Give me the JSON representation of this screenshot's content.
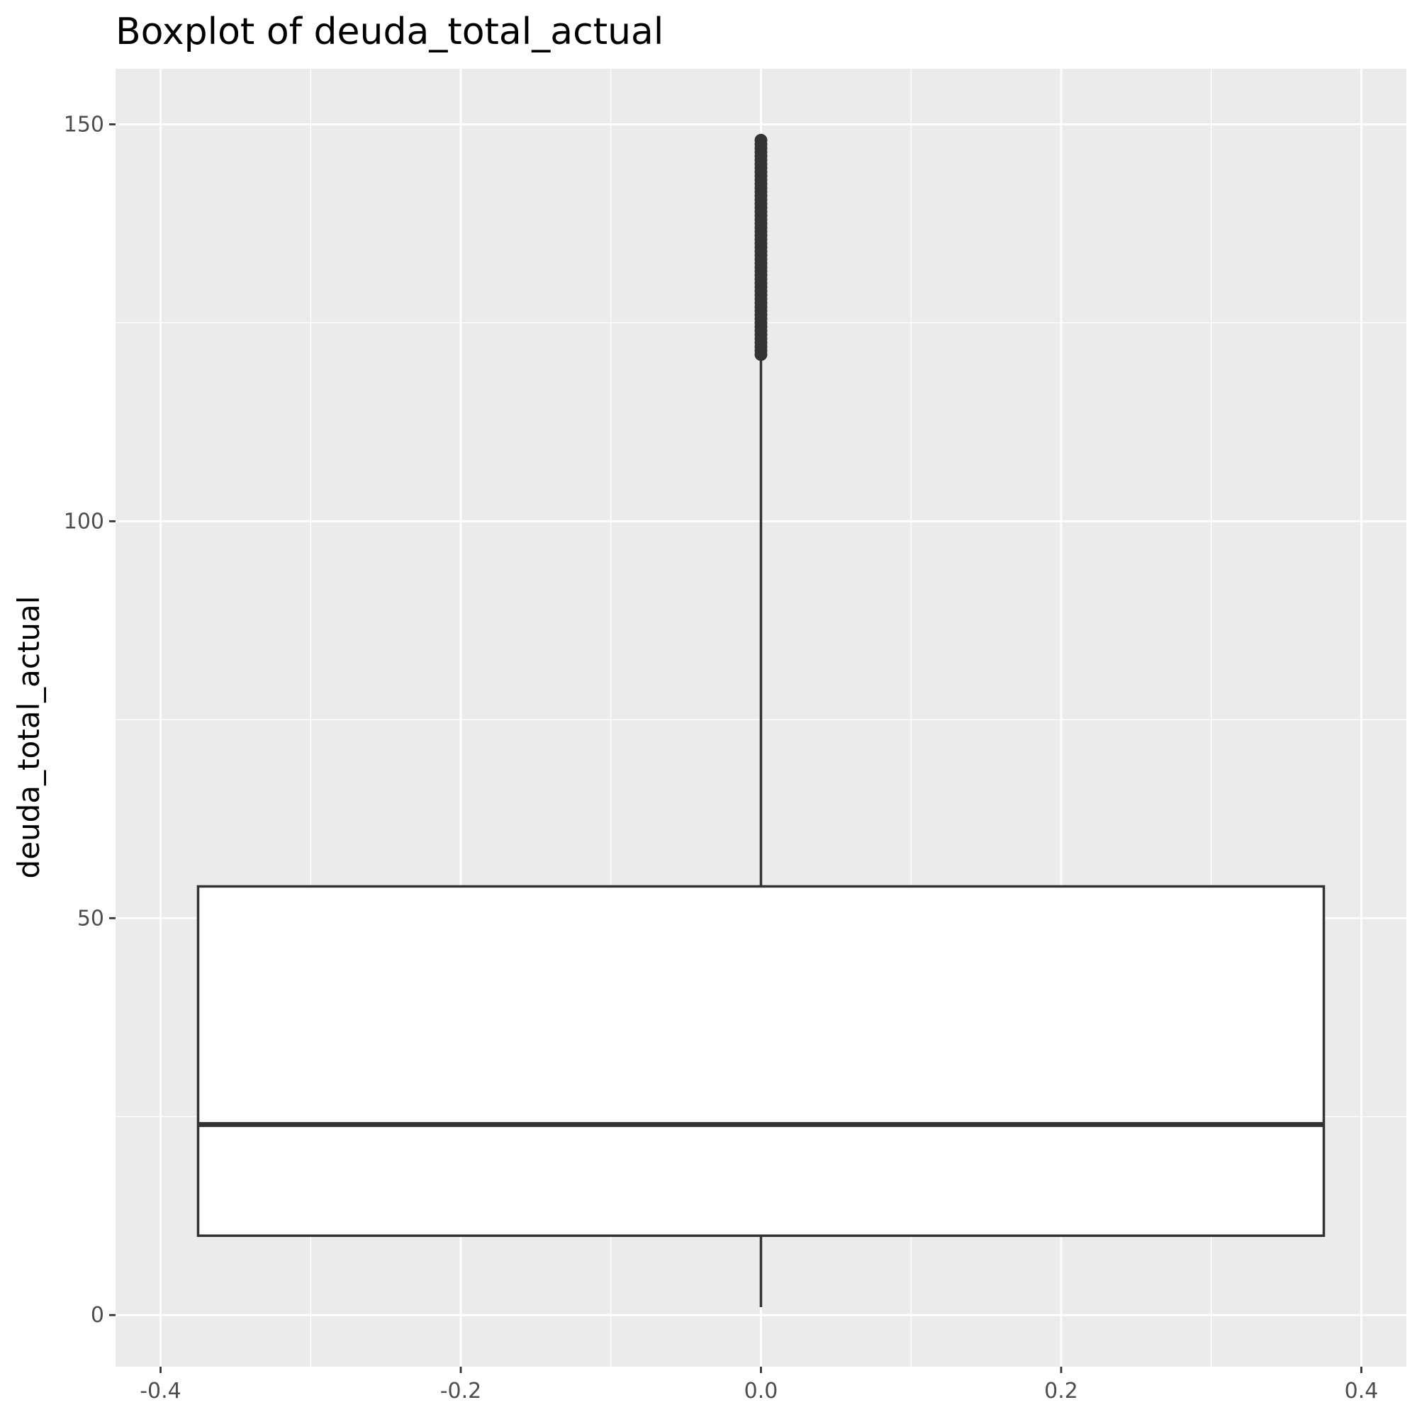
{
  "chart_data": {
    "type": "boxplot",
    "title": "Boxplot of deuda_total_actual",
    "xlabel": "",
    "ylabel": "deuda_total_actual",
    "xlim": [
      -0.43,
      0.43
    ],
    "ylim": [
      -6.5,
      157
    ],
    "x_ticks": [
      -0.4,
      -0.2,
      0.0,
      0.2,
      0.4
    ],
    "x_tick_labels": [
      "-0.4",
      "-0.2",
      "0.0",
      "0.2",
      "0.4"
    ],
    "y_ticks": [
      0,
      50,
      100,
      150
    ],
    "y_tick_labels": [
      "0",
      "50",
      "100",
      "150"
    ],
    "grid": true,
    "panel_background": "#ebebeb",
    "grid_color": "#ffffff",
    "box": {
      "x_center": 0.0,
      "x_min": -0.375,
      "x_max": 0.375,
      "q1": 10,
      "median": 24,
      "q3": 54,
      "whisker_low": 1,
      "whisker_high": 121,
      "outliers_range": [
        121,
        148
      ],
      "fill": "#ffffff",
      "stroke": "#333333"
    }
  }
}
